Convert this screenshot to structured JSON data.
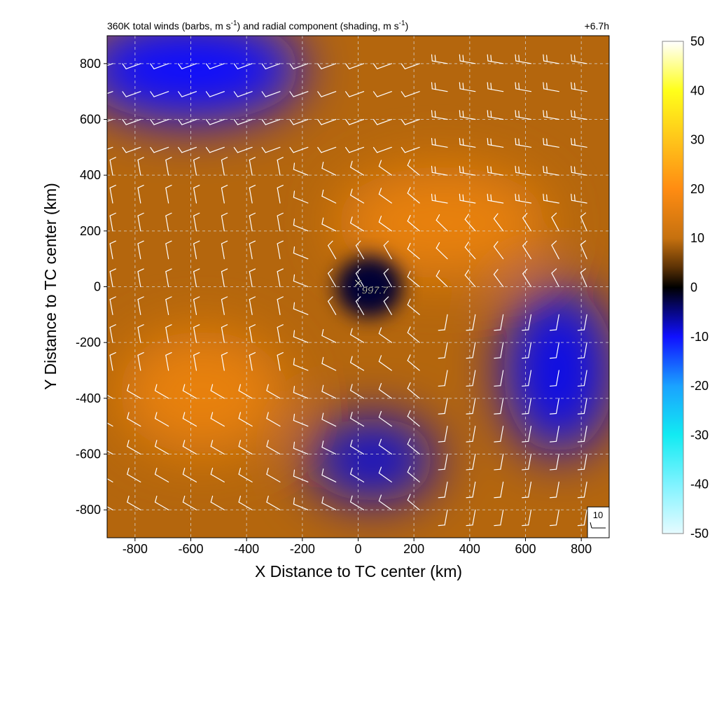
{
  "chart_data": {
    "type": "heatmap",
    "title": "360K total winds (barbs, m s⁻¹) and radial component (shading, m s⁻¹)",
    "title_parts": {
      "a": "360K total winds (barbs, m s",
      "b": "-1",
      "c": ") and radial component (shading, m s",
      "d": "-1",
      "e": ")"
    },
    "time_label": "+6.7h",
    "xlabel": "X Distance to TC center (km)",
    "ylabel": "Y Distance to TC center (km)",
    "xlim": [
      -900,
      900
    ],
    "ylim": [
      -900,
      900
    ],
    "xticks": [
      -800,
      -600,
      -400,
      -200,
      0,
      200,
      400,
      600,
      800
    ],
    "yticks": [
      -800,
      -600,
      -400,
      -200,
      0,
      200,
      400,
      600,
      800
    ],
    "grid": true,
    "center_marker": {
      "x": 0,
      "y": 0,
      "symbol": "×",
      "label": "997.7"
    },
    "reference_barb": {
      "label": "10",
      "position": "bottom-right"
    },
    "colorbar": {
      "range": [
        -50,
        50
      ],
      "ticks": [
        50,
        40,
        30,
        20,
        10,
        0,
        -10,
        -20,
        -30,
        -40,
        -50
      ],
      "colors": [
        {
          "v": -50,
          "c": "#e6fbff"
        },
        {
          "v": -40,
          "c": "#7ff3ff"
        },
        {
          "v": -30,
          "c": "#12ebf2"
        },
        {
          "v": -20,
          "c": "#1aa2ff"
        },
        {
          "v": -10,
          "c": "#1010ff"
        },
        {
          "v": -4,
          "c": "#06066b"
        },
        {
          "v": 0,
          "c": "#000000"
        },
        {
          "v": 4,
          "c": "#5a3105"
        },
        {
          "v": 10,
          "c": "#c6710f"
        },
        {
          "v": 20,
          "c": "#ff8c12"
        },
        {
          "v": 30,
          "c": "#ffc51a"
        },
        {
          "v": 40,
          "c": "#ffff1a"
        },
        {
          "v": 50,
          "c": "#ffffff"
        }
      ]
    },
    "radial_field_features": [
      {
        "type": "inflow_region",
        "x": -600,
        "y": 780,
        "rx": 400,
        "ry": 190,
        "value": -10
      },
      {
        "type": "inflow_region",
        "x": 50,
        "y": -620,
        "rx": 230,
        "ry": 150,
        "value": -8
      },
      {
        "type": "inflow_region",
        "x": 720,
        "y": -300,
        "rx": 200,
        "ry": 300,
        "value": -9
      },
      {
        "type": "outflow_region",
        "x": -560,
        "y": -380,
        "rx": 300,
        "ry": 220,
        "value": 16
      },
      {
        "type": "outflow_region",
        "x": 300,
        "y": 230,
        "rx": 380,
        "ry": 200,
        "value": 16
      },
      {
        "type": "core",
        "x": 40,
        "y": 0,
        "rx": 120,
        "ry": 110,
        "value": -2
      }
    ],
    "barb_grid": {
      "x_start": -880,
      "y_start": 800,
      "spacing": 100,
      "nx": 18,
      "ny": 17
    },
    "barb_regions": [
      {
        "where": "north (y ≥ 500)",
        "wind_from_deg": 250,
        "speed": 10
      },
      {
        "where": "north-east (x ≥ 300, y ≥ 300)",
        "wind_from_deg": 280,
        "speed": 15
      },
      {
        "where": "west-centre (x ≤ -200, -300 ≤ y ≤ 400)",
        "wind_from_deg": 350,
        "speed": 8
      },
      {
        "where": "south-west (x ≤ -200, y < -300)",
        "wind_from_deg": 300,
        "speed": 12
      },
      {
        "where": "east / south-east (x ≥ 300, y < 0)",
        "wind_from_deg": 190,
        "speed": 10
      },
      {
        "where": "near centre",
        "wind_from_deg": 330,
        "speed": 6
      }
    ]
  }
}
